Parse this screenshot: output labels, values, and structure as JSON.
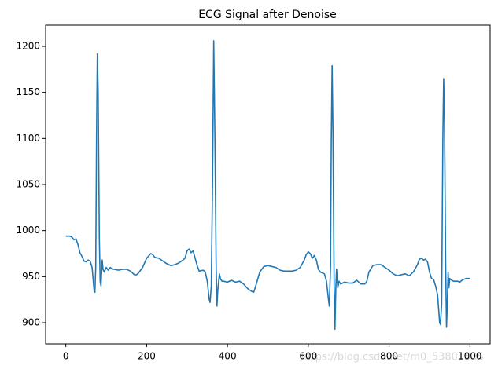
{
  "chart_data": {
    "type": "line",
    "title": "ECG Signal after Denoise",
    "watermark": "https://blog.csdn.net/m0_53801535",
    "xlim": [
      -50,
      1050
    ],
    "xticks": [
      0,
      200,
      400,
      600,
      800,
      1000
    ],
    "ylim": [
      877,
      1223
    ],
    "yticks": [
      900,
      950,
      1000,
      1050,
      1100,
      1150,
      1200
    ],
    "series": [
      {
        "color": "#1f77b4",
        "x": [
          0,
          10,
          15,
          20,
          25,
          30,
          35,
          40,
          45,
          50,
          55,
          60,
          65,
          70,
          72,
          74,
          76,
          78,
          80,
          83,
          85,
          87,
          90,
          92,
          95,
          100,
          105,
          110,
          115,
          120,
          130,
          140,
          150,
          160,
          170,
          175,
          180,
          190,
          200,
          210,
          215,
          220,
          230,
          240,
          250,
          260,
          270,
          280,
          290,
          295,
          300,
          305,
          310,
          315,
          320,
          325,
          330,
          340,
          345,
          350,
          355,
          357,
          360,
          363,
          366,
          369,
          372,
          374,
          376,
          380,
          383,
          387,
          390,
          400,
          410,
          420,
          430,
          440,
          450,
          460,
          465,
          470,
          480,
          490,
          500,
          510,
          520,
          530,
          540,
          560,
          570,
          580,
          590,
          595,
          600,
          605,
          610,
          615,
          620,
          625,
          630,
          640,
          645,
          650,
          652,
          655,
          657,
          659,
          661,
          664,
          666,
          668,
          670,
          673,
          676,
          680,
          690,
          700,
          710,
          720,
          730,
          740,
          745,
          750,
          760,
          770,
          780,
          790,
          800,
          810,
          820,
          830,
          840,
          850,
          860,
          870,
          875,
          880,
          885,
          890,
          895,
          900,
          905,
          910,
          915,
          920,
          925,
          927,
          930,
          933,
          935,
          937,
          940,
          942,
          944,
          946,
          948,
          950,
          955,
          960,
          970,
          975,
          980,
          990,
          1000
        ],
        "values": [
          994,
          994,
          993,
          990,
          991,
          985,
          976,
          972,
          967,
          966,
          968,
          967,
          960,
          935,
          933,
          960,
          1100,
          1192,
          1150,
          990,
          945,
          940,
          968,
          958,
          955,
          960,
          957,
          960,
          958,
          958,
          957,
          958,
          958,
          956,
          952,
          952,
          954,
          960,
          970,
          975,
          974,
          971,
          970,
          967,
          964,
          962,
          963,
          965,
          968,
          970,
          978,
          980,
          976,
          978,
          970,
          962,
          956,
          957,
          955,
          945,
          925,
          922,
          940,
          1050,
          1206,
          1100,
          960,
          918,
          935,
          953,
          947,
          945,
          945,
          944,
          946,
          944,
          945,
          942,
          937,
          934,
          933,
          940,
          955,
          961,
          962,
          961,
          960,
          957,
          956,
          956,
          957,
          960,
          968,
          974,
          977,
          975,
          970,
          973,
          968,
          958,
          955,
          953,
          945,
          925,
          918,
          960,
          1100,
          1179,
          1110,
          940,
          893,
          935,
          958,
          938,
          945,
          942,
          944,
          943,
          943,
          946,
          942,
          942,
          945,
          955,
          962,
          963,
          963,
          960,
          957,
          953,
          951,
          952,
          953,
          951,
          955,
          963,
          969,
          970,
          968,
          969,
          966,
          955,
          948,
          947,
          940,
          930,
          900,
          898,
          920,
          1100,
          1165,
          1120,
          960,
          895,
          920,
          955,
          938,
          948,
          946,
          945,
          945,
          944,
          946,
          948,
          948
        ]
      }
    ]
  }
}
